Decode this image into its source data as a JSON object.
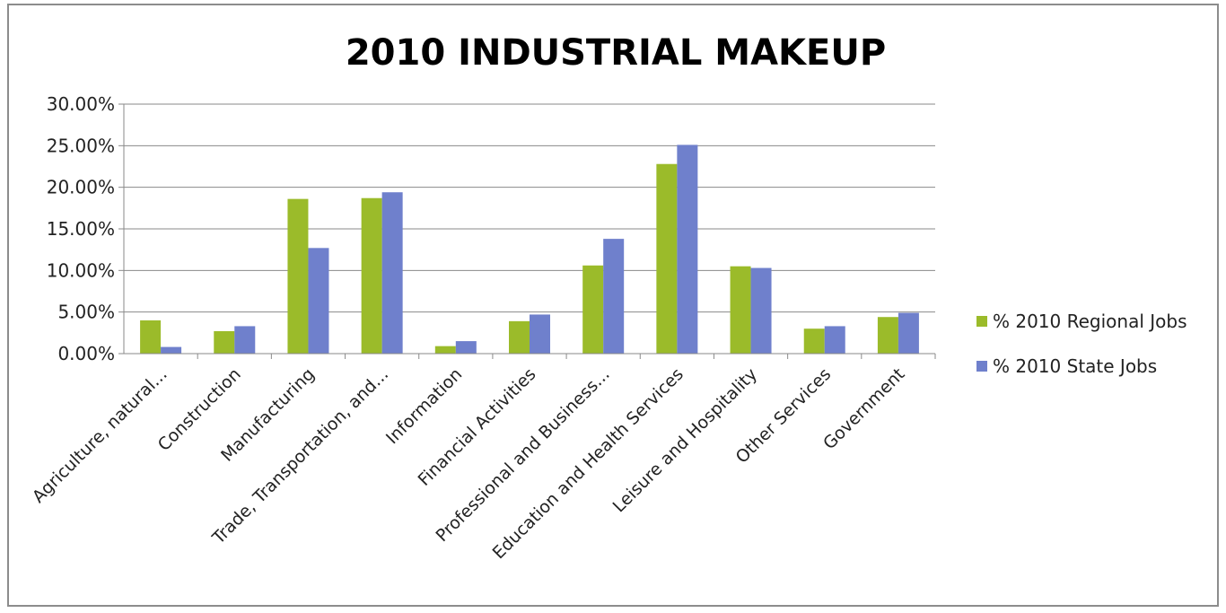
{
  "chart_data": {
    "type": "bar",
    "title": "2010 INDUSTRIAL MAKEUP",
    "xlabel": "",
    "ylabel": "",
    "ylim": [
      0,
      30
    ],
    "y_ticks": [
      "0.00%",
      "5.00%",
      "10.00%",
      "15.00%",
      "20.00%",
      "25.00%",
      "30.00%"
    ],
    "grid": true,
    "legend_position": "right",
    "categories": [
      "Agriculture, natural...",
      "Construction",
      "Manufacturing",
      "Trade, Transportation, and...",
      "Information",
      "Financial Activities",
      "Professional and Business...",
      "Education and Health Services",
      "Leisure and Hospitality",
      "Other Services",
      "Government"
    ],
    "series": [
      {
        "name": "% 2010 Regional Jobs",
        "color": "#9bbb2a",
        "values": [
          4.0,
          2.7,
          18.6,
          18.7,
          0.9,
          3.9,
          10.6,
          22.8,
          10.5,
          3.0,
          4.4
        ]
      },
      {
        "name": "% 2010 State Jobs",
        "color": "#6f80cc",
        "values": [
          0.8,
          3.3,
          12.7,
          19.4,
          1.5,
          4.7,
          13.8,
          25.1,
          10.3,
          3.3,
          4.9
        ]
      }
    ]
  }
}
